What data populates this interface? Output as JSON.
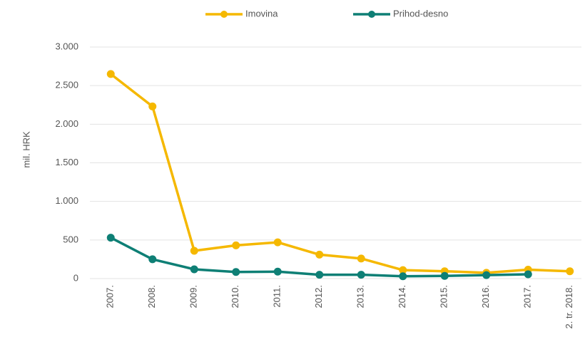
{
  "chart_data": {
    "type": "line",
    "y_label": "mil. HRK",
    "categories": [
      "2007.",
      "2008.",
      "2009.",
      "2010.",
      "2011.",
      "2012.",
      "2013.",
      "2014.",
      "2015.",
      "2016.",
      "2017.",
      "2. tr. 2018."
    ],
    "series": [
      {
        "name": "Imovina",
        "color": "#f5b800",
        "values": [
          2650,
          2230,
          360,
          430,
          470,
          310,
          260,
          110,
          95,
          75,
          115,
          95
        ]
      },
      {
        "name": "Prihod-desno",
        "color": "#0e7f75",
        "values": [
          530,
          250,
          120,
          85,
          90,
          50,
          50,
          30,
          35,
          45,
          55,
          null
        ]
      }
    ],
    "ylim": [
      0,
      3000
    ],
    "yticks": [
      0,
      500,
      {
        "value": 1000,
        "label": "1.000"
      },
      {
        "value": 1500,
        "label": "1.500"
      },
      {
        "value": 2000,
        "label": "2.000"
      },
      {
        "value": 2500,
        "label": "2.500"
      },
      {
        "value": 3000,
        "label": "3.000"
      }
    ],
    "grid": true
  }
}
